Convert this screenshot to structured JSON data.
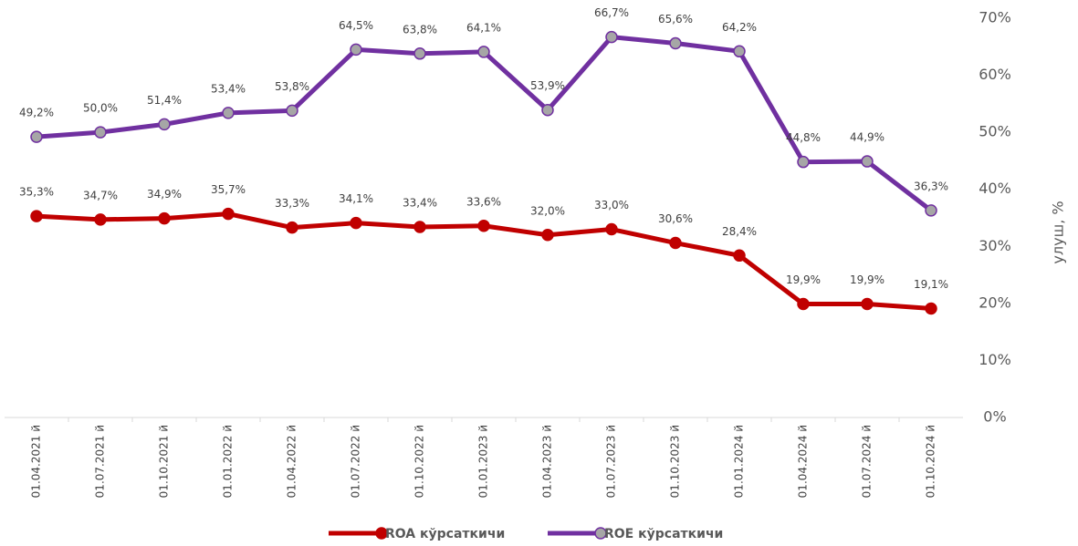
{
  "chart_data": {
    "type": "line",
    "categories": [
      "01.04.2021 й",
      "01.07.2021 й",
      "01.10.2021 й",
      "01.01.2022 й",
      "01.04.2022 й",
      "01.07.2022 й",
      "01.10.2022 й",
      "01.01.2023 й",
      "01.04.2023 й",
      "01.07.2023 й",
      "01.10.2023 й",
      "01.01.2024 й",
      "01.04.2024 й",
      "01.07.2024 й",
      "01.10.2024 й"
    ],
    "series": [
      {
        "name": "ROA кўрсаткичи",
        "color": "#c00000",
        "marker_color": "#c00000",
        "values": [
          35.3,
          34.7,
          34.9,
          35.7,
          33.3,
          34.1,
          33.4,
          33.6,
          32.0,
          33.0,
          30.6,
          28.4,
          19.9,
          19.9,
          19.1
        ],
        "value_labels": [
          "35,3%",
          "34,7%",
          "34,9%",
          "35,7%",
          "33,3%",
          "34,1%",
          "33,4%",
          "33,6%",
          "32,0%",
          "33,0%",
          "30,6%",
          "28,4%",
          "19,9%",
          "19,9%",
          "19,1%"
        ]
      },
      {
        "name": "ROE кўрсаткичи",
        "color": "#7030a0",
        "marker_color": "#a6a6a6",
        "values": [
          49.2,
          50.0,
          51.4,
          53.4,
          53.8,
          64.5,
          63.8,
          64.1,
          53.9,
          66.7,
          65.6,
          64.2,
          44.8,
          44.9,
          36.3
        ],
        "value_labels": [
          "49,2%",
          "50,0%",
          "51,4%",
          "53,4%",
          "53,8%",
          "64,5%",
          "63,8%",
          "64,1%",
          "53,9%",
          "66,7%",
          "65,6%",
          "64,2%",
          "44,8%",
          "44,9%",
          "36,3%"
        ]
      }
    ],
    "y_axis_label": "улуш, %",
    "ylim": [
      0,
      70
    ],
    "yticks": [
      {
        "value": 0,
        "label": "0%"
      },
      {
        "value": 10,
        "label": "10%"
      },
      {
        "value": 20,
        "label": "20%"
      },
      {
        "value": 30,
        "label": "30%"
      },
      {
        "value": 40,
        "label": "40%"
      },
      {
        "value": 50,
        "label": "50%"
      },
      {
        "value": 60,
        "label": "60%"
      },
      {
        "value": 70,
        "label": "70%"
      }
    ],
    "grid": false
  }
}
